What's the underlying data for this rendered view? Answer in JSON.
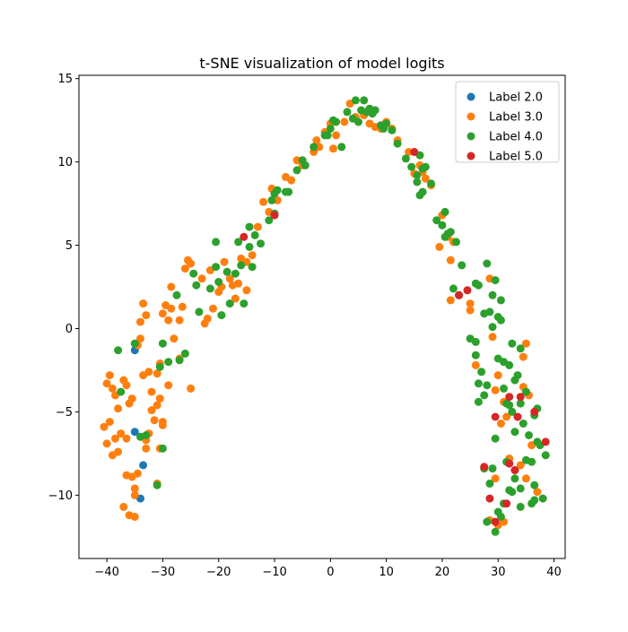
{
  "chart_data": {
    "type": "scatter",
    "title": "t-SNE visualization of model logits",
    "xlabel": "",
    "ylabel": "",
    "xlim": [
      -45,
      42
    ],
    "ylim": [
      -13.8,
      15.2
    ],
    "xticks": [
      -40,
      -30,
      -20,
      -10,
      0,
      10,
      20,
      30,
      40
    ],
    "yticks": [
      -10,
      -5,
      0,
      5,
      10,
      15
    ],
    "grid": false,
    "legend": "top-right",
    "series": [
      {
        "name": "Label 2.0",
        "color": "#1f77b4",
        "points": [
          [
            -35,
            -1.3
          ],
          [
            -35,
            -6.2
          ],
          [
            -33.5,
            -8.2
          ],
          [
            -34,
            -10.2
          ]
        ]
      },
      {
        "name": "Label 3.0",
        "color": "#ff7f0e",
        "points": [
          [
            -40,
            -3.3
          ],
          [
            -39.5,
            -2.8
          ],
          [
            -39,
            -3.6
          ],
          [
            -38.5,
            -4.0
          ],
          [
            -40.5,
            -5.9
          ],
          [
            -39.5,
            -5.6
          ],
          [
            -40,
            -6.9
          ],
          [
            -38.5,
            -6.6
          ],
          [
            -38,
            -4.8
          ],
          [
            -39,
            -7.6
          ],
          [
            -38,
            -7.4
          ],
          [
            -37,
            -3.1
          ],
          [
            -36.5,
            -3.4
          ],
          [
            -36,
            -4.5
          ],
          [
            -35.5,
            -4.2
          ],
          [
            -37.5,
            -6.3
          ],
          [
            -36.5,
            -6.6
          ],
          [
            -36.5,
            -8.8
          ],
          [
            -35.5,
            -8.9
          ],
          [
            -35,
            -9.6
          ],
          [
            -34.5,
            -8.7
          ],
          [
            -37,
            -10.7
          ],
          [
            -36,
            -11.2
          ],
          [
            -35,
            -11.3
          ],
          [
            -35,
            -10.0
          ],
          [
            -34,
            -0.6
          ],
          [
            -34.5,
            -1.0
          ],
          [
            -34,
            0.4
          ],
          [
            -33.5,
            1.5
          ],
          [
            -33,
            0.8
          ],
          [
            -33.5,
            -2.8
          ],
          [
            -32.5,
            -2.6
          ],
          [
            -32,
            -3.8
          ],
          [
            -31,
            -2.7
          ],
          [
            -30.5,
            -2.1
          ],
          [
            -31,
            -4.6
          ],
          [
            -30.5,
            -4.2
          ],
          [
            -32,
            -4.9
          ],
          [
            -31.5,
            -5.5
          ],
          [
            -32.5,
            -6.3
          ],
          [
            -33,
            -6.7
          ],
          [
            -33,
            -7.2
          ],
          [
            -31,
            -9.3
          ],
          [
            -30.5,
            -7.2
          ],
          [
            -30,
            -5.6
          ],
          [
            -30,
            -5.8
          ],
          [
            -30,
            0.9
          ],
          [
            -29.5,
            1.4
          ],
          [
            -29,
            0.5
          ],
          [
            -28.5,
            2.5
          ],
          [
            -28.5,
            1.2
          ],
          [
            -28,
            -0.6
          ],
          [
            -27,
            0.5
          ],
          [
            -26.5,
            1.3
          ],
          [
            -27,
            -1.8
          ],
          [
            -29,
            -3.4
          ],
          [
            -26,
            3.6
          ],
          [
            -25.5,
            4.1
          ],
          [
            -25,
            3.9
          ],
          [
            -25,
            -3.6
          ],
          [
            -23,
            3.0
          ],
          [
            -22.5,
            0.3
          ],
          [
            -22,
            0.6
          ],
          [
            -21.5,
            3.5
          ],
          [
            -21,
            1.2
          ],
          [
            -20,
            2.2
          ],
          [
            -19.5,
            2.5
          ],
          [
            -19,
            4.0
          ],
          [
            -18,
            3.0
          ],
          [
            -17.5,
            2.6
          ],
          [
            -17,
            1.8
          ],
          [
            -16.5,
            2.7
          ],
          [
            -16,
            4.2
          ],
          [
            -15,
            4.0
          ],
          [
            -15,
            2.3
          ],
          [
            -14,
            4.4
          ],
          [
            -13,
            6.1
          ],
          [
            -12,
            7.6
          ],
          [
            -11,
            7.0
          ],
          [
            -10.5,
            8.4
          ],
          [
            -9.5,
            7.7
          ],
          [
            -8,
            9.1
          ],
          [
            -7,
            8.9
          ],
          [
            -6,
            10.1
          ],
          [
            -5,
            9.8
          ],
          [
            -3,
            10.6
          ],
          [
            -2.5,
            11.3
          ],
          [
            -2,
            10.9
          ],
          [
            -1,
            11.8
          ],
          [
            0,
            12.3
          ],
          [
            0.5,
            10.8
          ],
          [
            1,
            11.6
          ],
          [
            2.5,
            12.4
          ],
          [
            3.5,
            13.5
          ],
          [
            4.5,
            12.7
          ],
          [
            6,
            12.8
          ],
          [
            7,
            12.3
          ],
          [
            8,
            12.1
          ],
          [
            9,
            12.0
          ],
          [
            10,
            12.4
          ],
          [
            11,
            12.0
          ],
          [
            12,
            11.3
          ],
          [
            14,
            10.6
          ],
          [
            15,
            9.3
          ],
          [
            16,
            9.8
          ],
          [
            16.5,
            9.4
          ],
          [
            17,
            9.0
          ],
          [
            18,
            8.6
          ],
          [
            19.5,
            4.9
          ],
          [
            20,
            6.8
          ],
          [
            21,
            5.5
          ],
          [
            21.5,
            4.1
          ],
          [
            22,
            5.2
          ],
          [
            21.5,
            1.7
          ],
          [
            23,
            2.0
          ],
          [
            25,
            1.5
          ],
          [
            25,
            1.1
          ],
          [
            26,
            -2.2
          ],
          [
            28.5,
            3.0
          ],
          [
            29,
            -0.5
          ],
          [
            29.5,
            -3.7
          ],
          [
            30,
            -2.8
          ],
          [
            31,
            -4.4
          ],
          [
            30.5,
            -5.7
          ],
          [
            31.5,
            -5.3
          ],
          [
            32,
            -7.8
          ],
          [
            29.5,
            -9.0
          ],
          [
            28.5,
            -11.5
          ],
          [
            30,
            -11.8
          ],
          [
            31,
            -11.6
          ],
          [
            33,
            -8.5
          ],
          [
            33.5,
            -5.3
          ],
          [
            34,
            -8.2
          ],
          [
            34.5,
            -3.5
          ],
          [
            34.5,
            -1.7
          ],
          [
            35,
            -0.9
          ],
          [
            35.5,
            -4.0
          ],
          [
            35,
            -9.0
          ],
          [
            36,
            -7.0
          ],
          [
            37,
            -9.8
          ]
        ]
      },
      {
        "name": "Label 4.0",
        "color": "#2ca02c",
        "points": [
          [
            -38,
            -1.3
          ],
          [
            -37.5,
            -3.8
          ],
          [
            -35,
            -0.9
          ],
          [
            -34,
            -6.5
          ],
          [
            -33,
            -6.4
          ],
          [
            -31,
            -9.4
          ],
          [
            -30,
            -7.2
          ],
          [
            -30.5,
            -2.3
          ],
          [
            -30,
            -0.9
          ],
          [
            -29,
            -2.0
          ],
          [
            -27.5,
            2.0
          ],
          [
            -27,
            -1.9
          ],
          [
            -26,
            -1.5
          ],
          [
            -24.5,
            3.3
          ],
          [
            -24,
            2.6
          ],
          [
            -23.5,
            1.0
          ],
          [
            -21.5,
            2.4
          ],
          [
            -20.5,
            3.7
          ],
          [
            -20,
            2.8
          ],
          [
            -20.5,
            5.2
          ],
          [
            -19.5,
            0.8
          ],
          [
            -18.5,
            3.4
          ],
          [
            -18,
            1.5
          ],
          [
            -17,
            3.3
          ],
          [
            -16.5,
            5.2
          ],
          [
            -16,
            3.8
          ],
          [
            -15.5,
            1.5
          ],
          [
            -14.5,
            4.9
          ],
          [
            -14.5,
            6.1
          ],
          [
            -14,
            3.7
          ],
          [
            -13.5,
            5.6
          ],
          [
            -12.5,
            5.1
          ],
          [
            -11,
            6.5
          ],
          [
            -10.5,
            7.7
          ],
          [
            -10,
            6.9
          ],
          [
            -10,
            8.1
          ],
          [
            -9.5,
            8.3
          ],
          [
            -8,
            8.2
          ],
          [
            -7.5,
            8.2
          ],
          [
            -6,
            9.5
          ],
          [
            -5,
            10.1
          ],
          [
            -4.5,
            9.8
          ],
          [
            -3,
            10.9
          ],
          [
            -1,
            11.6
          ],
          [
            -0.5,
            11.6
          ],
          [
            0,
            12.0
          ],
          [
            0.5,
            12.5
          ],
          [
            1,
            12.4
          ],
          [
            2,
            10.9
          ],
          [
            3,
            13.0
          ],
          [
            4,
            12.6
          ],
          [
            4.5,
            13.7
          ],
          [
            5,
            12.4
          ],
          [
            5.5,
            13.1
          ],
          [
            6,
            13.7
          ],
          [
            6.5,
            13.0
          ],
          [
            7,
            13.2
          ],
          [
            7.5,
            12.9
          ],
          [
            8,
            13.1
          ],
          [
            9,
            12.2
          ],
          [
            9.5,
            12.0
          ],
          [
            10,
            12.3
          ],
          [
            11,
            11.9
          ],
          [
            12,
            11.1
          ],
          [
            13.5,
            10.2
          ],
          [
            14.5,
            9.7
          ],
          [
            15.5,
            9.2
          ],
          [
            15.5,
            8.8
          ],
          [
            16,
            10.4
          ],
          [
            16.5,
            9.6
          ],
          [
            16,
            8.0
          ],
          [
            16.5,
            8.2
          ],
          [
            17,
            9.7
          ],
          [
            18,
            8.7
          ],
          [
            19,
            6.5
          ],
          [
            20,
            6.2
          ],
          [
            20.5,
            7.0
          ],
          [
            21,
            5.7
          ],
          [
            21.5,
            5.8
          ],
          [
            20.5,
            5.5
          ],
          [
            22,
            2.4
          ],
          [
            22.5,
            5.2
          ],
          [
            23,
            2.0
          ],
          [
            23.5,
            3.8
          ],
          [
            25,
            -0.6
          ],
          [
            26,
            -0.8
          ],
          [
            26,
            -1.6
          ],
          [
            26.5,
            -3.3
          ],
          [
            26.5,
            -4.4
          ],
          [
            27,
            -2.6
          ],
          [
            27.5,
            -4.0
          ],
          [
            27.5,
            -8.4
          ],
          [
            28,
            -3.4
          ],
          [
            26,
            2.7
          ],
          [
            26.5,
            2.6
          ],
          [
            27.5,
            0.9
          ],
          [
            28,
            3.9
          ],
          [
            28.5,
            1.0
          ],
          [
            29,
            2.0
          ],
          [
            29,
            0.1
          ],
          [
            29.5,
            2.9
          ],
          [
            30,
            0.7
          ],
          [
            30.5,
            0.5
          ],
          [
            30.5,
            1.7
          ],
          [
            30,
            -1.8
          ],
          [
            31,
            -2.0
          ],
          [
            31,
            -3.6
          ],
          [
            31.5,
            -4.5
          ],
          [
            32,
            -2.2
          ],
          [
            32.5,
            -0.9
          ],
          [
            32,
            -4.6
          ],
          [
            32.5,
            -5.0
          ],
          [
            33,
            -6.2
          ],
          [
            33,
            -3.1
          ],
          [
            33.5,
            -2.8
          ],
          [
            34,
            -1.2
          ],
          [
            34,
            -4.5
          ],
          [
            34.5,
            -5.7
          ],
          [
            35,
            -3.8
          ],
          [
            35,
            -7.9
          ],
          [
            35.5,
            -6.4
          ],
          [
            36,
            -8.0
          ],
          [
            36.5,
            -5.2
          ],
          [
            37,
            -4.8
          ],
          [
            37,
            -6.8
          ],
          [
            36.5,
            -9.4
          ],
          [
            36.5,
            -10.3
          ],
          [
            36,
            -10.5
          ],
          [
            37.5,
            -7.0
          ],
          [
            38.5,
            -7.6
          ],
          [
            38,
            -10.2
          ],
          [
            34,
            -9.6
          ],
          [
            34,
            -10.7
          ],
          [
            33,
            -9.0
          ],
          [
            32,
            -9.7
          ],
          [
            32.5,
            -9.8
          ],
          [
            31.5,
            -8.0
          ],
          [
            31,
            -10.5
          ],
          [
            30.5,
            -11.3
          ],
          [
            30,
            -11.0
          ],
          [
            29.5,
            -12.2
          ],
          [
            29,
            -8.4
          ],
          [
            28.5,
            -9.3
          ],
          [
            29.5,
            -6.6
          ],
          [
            28,
            -11.6
          ]
        ]
      },
      {
        "name": "Label 5.0",
        "color": "#d62728",
        "points": [
          [
            -15.5,
            5.5
          ],
          [
            -10,
            6.8
          ],
          [
            15,
            10.6
          ],
          [
            23,
            2.0
          ],
          [
            24.5,
            2.3
          ],
          [
            32,
            -4.1
          ],
          [
            33.5,
            -5.3
          ],
          [
            34,
            -4.1
          ],
          [
            36.5,
            -5.0
          ],
          [
            38.5,
            -6.8
          ],
          [
            29.5,
            -5.3
          ],
          [
            27.5,
            -8.3
          ],
          [
            32,
            -8.1
          ],
          [
            33,
            -8.5
          ],
          [
            31.5,
            -10.5
          ],
          [
            28.5,
            -10.2
          ],
          [
            29.5,
            -11.6
          ]
        ]
      }
    ]
  }
}
